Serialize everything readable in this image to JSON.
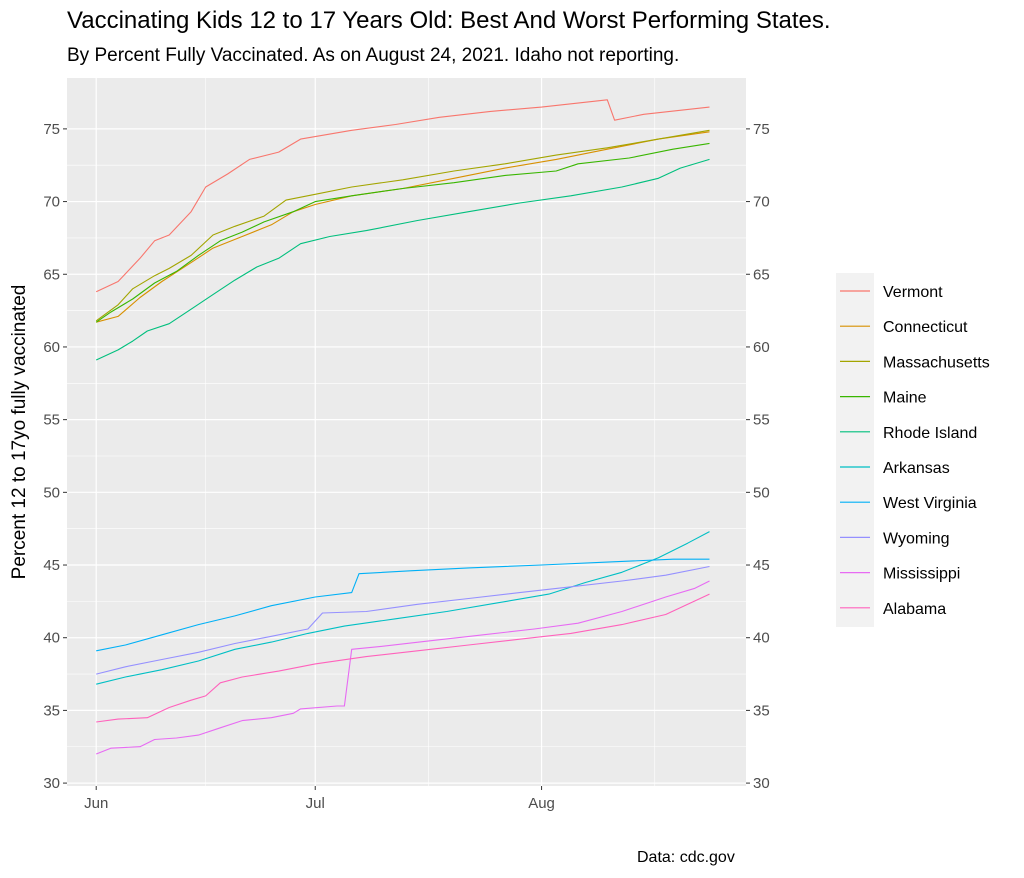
{
  "chart_data": {
    "type": "line",
    "title": "Vaccinating Kids 12 to 17 Years Old: Best And Worst Performing States.",
    "subtitle": "By Percent Fully Vaccinated. As on August 24, 2021. Idaho not reporting.",
    "ylabel": "Percent 12 to 17yo fully vaccinated",
    "xlabel": "",
    "source": "Data: cdc.gov",
    "x_range": [
      "2021-05-28",
      "2021-08-29"
    ],
    "x_ticks": [
      {
        "date": "2021-06-01",
        "label": "Jun"
      },
      {
        "date": "2021-07-01",
        "label": "Jul"
      },
      {
        "date": "2021-08-01",
        "label": "Aug"
      }
    ],
    "ylim": [
      29.8,
      78.5
    ],
    "y_ticks": [
      30,
      35,
      40,
      45,
      50,
      55,
      60,
      65,
      70,
      75
    ],
    "y_axis_both_sides": true,
    "grid": true,
    "legend_position": "right",
    "series": [
      {
        "name": "Vermont",
        "color": "#F8766D",
        "points": [
          [
            "2021-06-01",
            63.8
          ],
          [
            "2021-06-04",
            64.5
          ],
          [
            "2021-06-07",
            66.1
          ],
          [
            "2021-06-09",
            67.3
          ],
          [
            "2021-06-11",
            67.7
          ],
          [
            "2021-06-14",
            69.3
          ],
          [
            "2021-06-16",
            71.0
          ],
          [
            "2021-06-19",
            71.9
          ],
          [
            "2021-06-22",
            72.9
          ],
          [
            "2021-06-26",
            73.4
          ],
          [
            "2021-06-29",
            74.3
          ],
          [
            "2021-07-06",
            74.9
          ],
          [
            "2021-07-12",
            75.3
          ],
          [
            "2021-07-18",
            75.8
          ],
          [
            "2021-07-25",
            76.2
          ],
          [
            "2021-08-01",
            76.5
          ],
          [
            "2021-08-10",
            77.0
          ],
          [
            "2021-08-11",
            75.6
          ],
          [
            "2021-08-15",
            76.0
          ],
          [
            "2021-08-24",
            76.5
          ]
        ]
      },
      {
        "name": "Connecticut",
        "color": "#D89000",
        "points": [
          [
            "2021-06-01",
            61.7
          ],
          [
            "2021-06-04",
            62.1
          ],
          [
            "2021-06-07",
            63.4
          ],
          [
            "2021-06-10",
            64.5
          ],
          [
            "2021-06-14",
            65.8
          ],
          [
            "2021-06-17",
            66.8
          ],
          [
            "2021-06-21",
            67.6
          ],
          [
            "2021-06-25",
            68.4
          ],
          [
            "2021-06-28",
            69.3
          ],
          [
            "2021-07-01",
            69.8
          ],
          [
            "2021-07-06",
            70.4
          ],
          [
            "2021-07-13",
            70.9
          ],
          [
            "2021-07-20",
            71.6
          ],
          [
            "2021-07-27",
            72.3
          ],
          [
            "2021-08-03",
            72.9
          ],
          [
            "2021-08-10",
            73.6
          ],
          [
            "2021-08-17",
            74.3
          ],
          [
            "2021-08-24",
            74.8
          ]
        ]
      },
      {
        "name": "Massachusetts",
        "color": "#A3A500",
        "points": [
          [
            "2021-06-01",
            61.8
          ],
          [
            "2021-06-04",
            62.9
          ],
          [
            "2021-06-06",
            64.0
          ],
          [
            "2021-06-09",
            64.9
          ],
          [
            "2021-06-11",
            65.4
          ],
          [
            "2021-06-14",
            66.3
          ],
          [
            "2021-06-17",
            67.7
          ],
          [
            "2021-06-20",
            68.3
          ],
          [
            "2021-06-24",
            69.0
          ],
          [
            "2021-06-27",
            70.1
          ],
          [
            "2021-07-01",
            70.5
          ],
          [
            "2021-07-06",
            71.0
          ],
          [
            "2021-07-13",
            71.5
          ],
          [
            "2021-07-20",
            72.1
          ],
          [
            "2021-07-27",
            72.6
          ],
          [
            "2021-08-03",
            73.2
          ],
          [
            "2021-08-10",
            73.7
          ],
          [
            "2021-08-17",
            74.3
          ],
          [
            "2021-08-24",
            74.9
          ]
        ]
      },
      {
        "name": "Maine",
        "color": "#39B600",
        "points": [
          [
            "2021-06-01",
            61.7
          ],
          [
            "2021-06-03",
            62.4
          ],
          [
            "2021-06-06",
            63.3
          ],
          [
            "2021-06-09",
            64.4
          ],
          [
            "2021-06-12",
            65.2
          ],
          [
            "2021-06-15",
            66.3
          ],
          [
            "2021-06-18",
            67.3
          ],
          [
            "2021-06-21",
            67.9
          ],
          [
            "2021-06-24",
            68.6
          ],
          [
            "2021-06-28",
            69.3
          ],
          [
            "2021-07-01",
            70.0
          ],
          [
            "2021-07-06",
            70.4
          ],
          [
            "2021-07-13",
            70.9
          ],
          [
            "2021-07-20",
            71.3
          ],
          [
            "2021-07-27",
            71.8
          ],
          [
            "2021-08-03",
            72.1
          ],
          [
            "2021-08-06",
            72.6
          ],
          [
            "2021-08-13",
            73.0
          ],
          [
            "2021-08-19",
            73.6
          ],
          [
            "2021-08-24",
            74.0
          ]
        ]
      },
      {
        "name": "Rhode Island",
        "color": "#00BF7D",
        "points": [
          [
            "2021-06-01",
            59.1
          ],
          [
            "2021-06-04",
            59.8
          ],
          [
            "2021-06-06",
            60.4
          ],
          [
            "2021-06-08",
            61.1
          ],
          [
            "2021-06-11",
            61.6
          ],
          [
            "2021-06-14",
            62.6
          ],
          [
            "2021-06-17",
            63.6
          ],
          [
            "2021-06-20",
            64.6
          ],
          [
            "2021-06-23",
            65.5
          ],
          [
            "2021-06-26",
            66.1
          ],
          [
            "2021-06-29",
            67.1
          ],
          [
            "2021-07-03",
            67.6
          ],
          [
            "2021-07-08",
            68.0
          ],
          [
            "2021-07-15",
            68.7
          ],
          [
            "2021-07-22",
            69.3
          ],
          [
            "2021-07-29",
            69.9
          ],
          [
            "2021-08-05",
            70.4
          ],
          [
            "2021-08-12",
            71.0
          ],
          [
            "2021-08-17",
            71.6
          ],
          [
            "2021-08-20",
            72.3
          ],
          [
            "2021-08-24",
            72.9
          ]
        ]
      },
      {
        "name": "Arkansas",
        "color": "#00BFC4",
        "points": [
          [
            "2021-06-01",
            36.8
          ],
          [
            "2021-06-05",
            37.3
          ],
          [
            "2021-06-10",
            37.8
          ],
          [
            "2021-06-15",
            38.4
          ],
          [
            "2021-06-20",
            39.2
          ],
          [
            "2021-06-25",
            39.7
          ],
          [
            "2021-06-30",
            40.3
          ],
          [
            "2021-07-05",
            40.8
          ],
          [
            "2021-07-12",
            41.3
          ],
          [
            "2021-07-19",
            41.8
          ],
          [
            "2021-07-26",
            42.4
          ],
          [
            "2021-08-02",
            43.0
          ],
          [
            "2021-08-07",
            43.8
          ],
          [
            "2021-08-12",
            44.5
          ],
          [
            "2021-08-17",
            45.5
          ],
          [
            "2021-08-21",
            46.5
          ],
          [
            "2021-08-24",
            47.3
          ]
        ]
      },
      {
        "name": "West Virginia",
        "color": "#00B0F6",
        "points": [
          [
            "2021-06-01",
            39.1
          ],
          [
            "2021-06-05",
            39.5
          ],
          [
            "2021-06-10",
            40.2
          ],
          [
            "2021-06-15",
            40.9
          ],
          [
            "2021-06-20",
            41.5
          ],
          [
            "2021-06-25",
            42.2
          ],
          [
            "2021-07-01",
            42.8
          ],
          [
            "2021-07-06",
            43.1
          ],
          [
            "2021-07-07",
            44.4
          ],
          [
            "2021-07-14",
            44.6
          ],
          [
            "2021-07-22",
            44.8
          ],
          [
            "2021-08-01",
            45.0
          ],
          [
            "2021-08-10",
            45.2
          ],
          [
            "2021-08-19",
            45.4
          ],
          [
            "2021-08-24",
            45.4
          ]
        ]
      },
      {
        "name": "Wyoming",
        "color": "#9590FF",
        "points": [
          [
            "2021-06-01",
            37.5
          ],
          [
            "2021-06-05",
            38.0
          ],
          [
            "2021-06-10",
            38.5
          ],
          [
            "2021-06-15",
            39.0
          ],
          [
            "2021-06-20",
            39.6
          ],
          [
            "2021-06-25",
            40.1
          ],
          [
            "2021-06-30",
            40.6
          ],
          [
            "2021-07-02",
            41.7
          ],
          [
            "2021-07-08",
            41.8
          ],
          [
            "2021-07-15",
            42.3
          ],
          [
            "2021-07-22",
            42.7
          ],
          [
            "2021-07-29",
            43.1
          ],
          [
            "2021-08-05",
            43.5
          ],
          [
            "2021-08-12",
            43.9
          ],
          [
            "2021-08-18",
            44.3
          ],
          [
            "2021-08-24",
            44.9
          ]
        ]
      },
      {
        "name": "Mississippi",
        "color": "#E76BF3",
        "points": [
          [
            "2021-06-01",
            32.0
          ],
          [
            "2021-06-03",
            32.4
          ],
          [
            "2021-06-07",
            32.5
          ],
          [
            "2021-06-09",
            33.0
          ],
          [
            "2021-06-12",
            33.1
          ],
          [
            "2021-06-15",
            33.3
          ],
          [
            "2021-06-18",
            33.8
          ],
          [
            "2021-06-21",
            34.3
          ],
          [
            "2021-06-25",
            34.5
          ],
          [
            "2021-06-28",
            34.8
          ],
          [
            "2021-06-29",
            35.1
          ],
          [
            "2021-07-04",
            35.3
          ],
          [
            "2021-07-05",
            35.3
          ],
          [
            "2021-07-06",
            39.2
          ],
          [
            "2021-07-10",
            39.4
          ],
          [
            "2021-07-17",
            39.8
          ],
          [
            "2021-07-24",
            40.2
          ],
          [
            "2021-07-31",
            40.6
          ],
          [
            "2021-08-06",
            41.0
          ],
          [
            "2021-08-12",
            41.8
          ],
          [
            "2021-08-18",
            42.8
          ],
          [
            "2021-08-22",
            43.4
          ],
          [
            "2021-08-24",
            43.9
          ]
        ]
      },
      {
        "name": "Alabama",
        "color": "#FF62BC",
        "points": [
          [
            "2021-06-01",
            34.2
          ],
          [
            "2021-06-04",
            34.4
          ],
          [
            "2021-06-08",
            34.5
          ],
          [
            "2021-06-11",
            35.2
          ],
          [
            "2021-06-14",
            35.7
          ],
          [
            "2021-06-16",
            36.0
          ],
          [
            "2021-06-18",
            36.9
          ],
          [
            "2021-06-21",
            37.3
          ],
          [
            "2021-06-26",
            37.7
          ],
          [
            "2021-07-01",
            38.2
          ],
          [
            "2021-07-08",
            38.7
          ],
          [
            "2021-07-15",
            39.1
          ],
          [
            "2021-07-22",
            39.5
          ],
          [
            "2021-07-29",
            39.9
          ],
          [
            "2021-08-05",
            40.3
          ],
          [
            "2021-08-12",
            40.9
          ],
          [
            "2021-08-18",
            41.6
          ],
          [
            "2021-08-24",
            43.0
          ]
        ]
      }
    ]
  }
}
